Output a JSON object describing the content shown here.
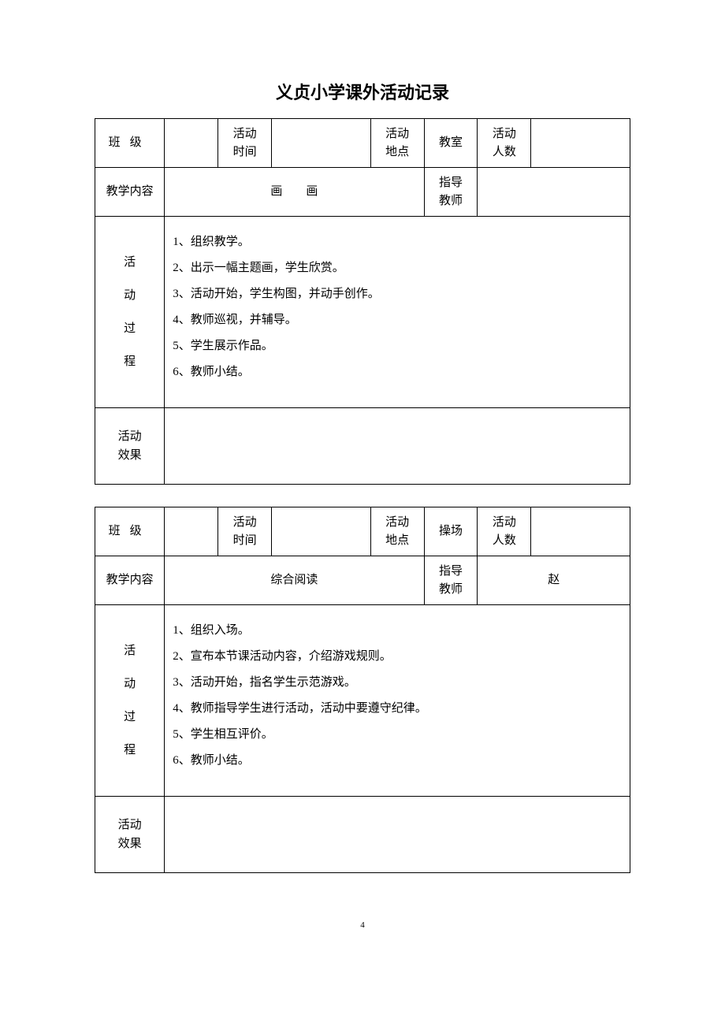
{
  "page_title": "义贞小学课外活动记录",
  "page_number": "4",
  "table1": {
    "row1": {
      "class_label": "班级",
      "class_value": "",
      "time_label": "活动\n时间",
      "time_value": "",
      "place_label": "活动\n地点",
      "place_value": "教室",
      "count_label": "活动\n人数",
      "count_value": ""
    },
    "row2": {
      "content_label": "教学内容",
      "content_value": "画　　画",
      "teacher_label": "指导\n教师",
      "teacher_value": ""
    },
    "process_label": "活\n动\n过\n程",
    "process_lines": [
      "1、组织教学。",
      "2、出示一幅主题画，学生欣赏。",
      "3、活动开始，学生构图，并动手创作。",
      "4、教师巡视，并辅导。",
      "5、学生展示作品。",
      "6、教师小结。"
    ],
    "result_label": "活动\n效果",
    "result_value": ""
  },
  "table2": {
    "row1": {
      "class_label": "班级",
      "class_value": "",
      "time_label": "活动\n时间",
      "time_value": "",
      "place_label": "活动\n地点",
      "place_value": "操场",
      "count_label": "活动\n人数",
      "count_value": ""
    },
    "row2": {
      "content_label": "教学内容",
      "content_value": "综合阅读",
      "teacher_label": "指导\n教师",
      "teacher_value": "赵"
    },
    "process_label": "活\n动\n过\n程",
    "process_lines": [
      "1、组织入场。",
      "2、宣布本节课活动内容，介绍游戏规则。",
      "3、活动开始，指名学生示范游戏。",
      "4、教师指导学生进行活动，活动中要遵守纪律。",
      "5、学生相互评价。",
      "6、教师小结。"
    ],
    "result_label": "活动\n效果",
    "result_value": ""
  },
  "styles": {
    "background_color": "#ffffff",
    "text_color": "#000000",
    "border_color": "#000000",
    "title_fontsize": 22,
    "body_fontsize": 15,
    "page_number_fontsize": 11,
    "font_family": "SimSun"
  }
}
